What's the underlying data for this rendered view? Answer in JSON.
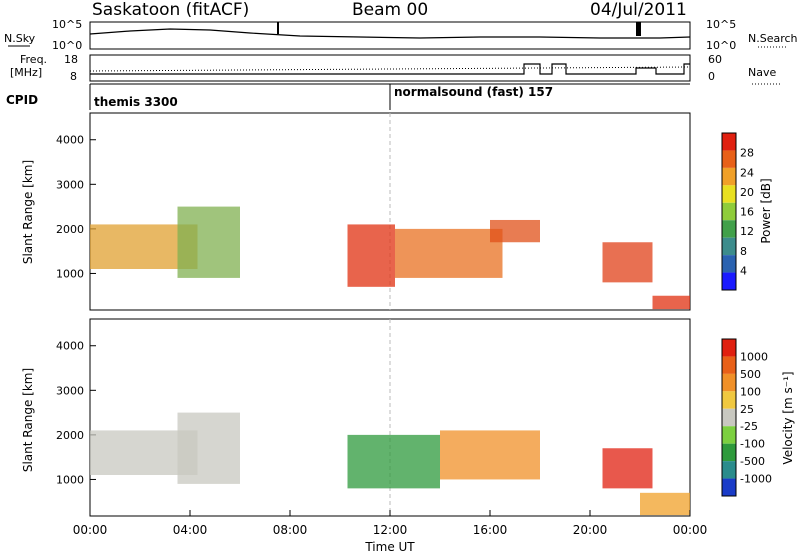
{
  "header": {
    "station": "Saskatoon (fitACF)",
    "beam": "Beam 00",
    "date": "04/Jul/2011"
  },
  "strip1": {
    "left_label": "N.Sky",
    "left_ticks": [
      "10^5",
      "10^0"
    ],
    "right_ticks": [
      "10^5",
      "10^0"
    ],
    "right_label": "N.Search"
  },
  "strip2": {
    "left_label_line1": "Freq.",
    "left_label_line2": "[MHz]",
    "left_ticks": [
      "18",
      "8"
    ],
    "right_ticks": [
      "60",
      "0"
    ],
    "right_label": "Nave"
  },
  "cpid": {
    "label": "CPID",
    "entries": [
      {
        "text": "themis 3300",
        "start_hour": 0.0
      },
      {
        "text": "normalsound (fast) 157",
        "start_hour": 12.0
      }
    ]
  },
  "x_axis": {
    "label": "Time UT",
    "ticks": [
      "00:00",
      "04:00",
      "08:00",
      "12:00",
      "16:00",
      "20:00",
      "00:00"
    ],
    "range_hours": [
      0,
      24
    ]
  },
  "chart_data": [
    {
      "type": "heatmap",
      "title": "",
      "xlabel": "Time UT",
      "ylabel": "Slant Range [km]",
      "xlim": [
        0,
        24
      ],
      "ylim": [
        180,
        4600
      ],
      "yticks": [
        "1000",
        "2000",
        "3000",
        "4000"
      ],
      "colorbar": {
        "label": "Power [dB]",
        "ticks": [
          "28",
          "24",
          "20",
          "16",
          "12",
          "8",
          "4"
        ],
        "colors": [
          "#1a1aff",
          "#2a62b0",
          "#3c8c8c",
          "#41a04a",
          "#8fcc3a",
          "#e8e020",
          "#f0a028",
          "#e86018",
          "#e02010"
        ]
      },
      "bands": [
        {
          "t0": 0.0,
          "t1": 4.3,
          "r0": 1100,
          "r1": 2100,
          "color": "#e0a030"
        },
        {
          "t0": 3.5,
          "t1": 6.0,
          "r0": 900,
          "r1": 2500,
          "color": "#80b050"
        },
        {
          "t0": 10.3,
          "t1": 12.2,
          "r0": 700,
          "r1": 2100,
          "color": "#e03010"
        },
        {
          "t0": 12.2,
          "t1": 16.5,
          "r0": 900,
          "r1": 2000,
          "color": "#e87020"
        },
        {
          "t0": 16.0,
          "t1": 18.0,
          "r0": 1700,
          "r1": 2200,
          "color": "#e05018"
        },
        {
          "t0": 20.5,
          "t1": 22.5,
          "r0": 800,
          "r1": 1700,
          "color": "#e04018"
        },
        {
          "t0": 22.5,
          "t1": 24.0,
          "r0": 200,
          "r1": 500,
          "color": "#e03010"
        }
      ]
    },
    {
      "type": "heatmap",
      "title": "",
      "xlabel": "Time UT",
      "ylabel": "Slant Range [km]",
      "xlim": [
        0,
        24
      ],
      "ylim": [
        180,
        4600
      ],
      "yticks": [
        "1000",
        "2000",
        "3000",
        "4000"
      ],
      "colorbar": {
        "label": "Velocity [m s^-1]",
        "ticks": [
          "1000",
          "500",
          "100",
          "25",
          "-25",
          "-100",
          "-500",
          "-1000"
        ],
        "colors": [
          "#1a3cc8",
          "#2a8c8c",
          "#2e9a3c",
          "#7cd040",
          "#c8c8c0",
          "#f0c840",
          "#f09028",
          "#e86018",
          "#e02010"
        ]
      },
      "bands": [
        {
          "t0": 0.0,
          "t1": 4.3,
          "r0": 1100,
          "r1": 2100,
          "color": "#c8c8c0"
        },
        {
          "t0": 3.5,
          "t1": 6.0,
          "r0": 900,
          "r1": 2500,
          "color": "#c8c8c0"
        },
        {
          "t0": 10.3,
          "t1": 14.0,
          "r0": 800,
          "r1": 2000,
          "color": "#2e9a3c"
        },
        {
          "t0": 14.0,
          "t1": 18.0,
          "r0": 1000,
          "r1": 2100,
          "color": "#f09028"
        },
        {
          "t0": 20.5,
          "t1": 22.5,
          "r0": 800,
          "r1": 1700,
          "color": "#e02010"
        },
        {
          "t0": 22.0,
          "t1": 24.0,
          "r0": 200,
          "r1": 700,
          "color": "#f0a028"
        }
      ]
    }
  ]
}
